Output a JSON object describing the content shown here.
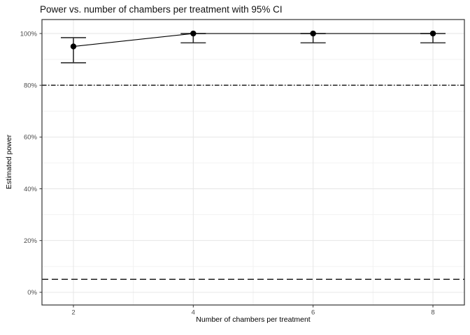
{
  "chart_data": {
    "type": "line",
    "title": "Power vs. number of chambers per treatment with 95% CI",
    "xlabel": "Number of chambers per treatment",
    "ylabel": "Estimated power",
    "x": [
      2,
      4,
      6,
      8
    ],
    "series": [
      {
        "name": "estimated-power",
        "values": [
          0.95,
          1.0,
          1.0,
          1.0
        ],
        "ci_lower": [
          0.887,
          0.964,
          0.964,
          0.964
        ],
        "ci_upper": [
          0.984,
          1.0,
          1.0,
          1.0
        ]
      }
    ],
    "reference_lines": [
      {
        "y": 0.8,
        "style": "dash-dot"
      },
      {
        "y": 0.05,
        "style": "dashed"
      }
    ],
    "x_ticks": [
      2,
      4,
      6,
      8
    ],
    "x_tick_labels": [
      "2",
      "4",
      "6",
      "8"
    ],
    "x_minor": [
      3,
      5,
      7
    ],
    "y_tick_values": [
      0,
      0.2,
      0.4,
      0.6,
      0.8,
      1.0
    ],
    "y_tick_labels": [
      "0%",
      "20%",
      "40%",
      "60%",
      "80%",
      "100%"
    ],
    "y_minor": [
      0.1,
      0.3,
      0.5,
      0.7,
      0.9
    ],
    "xlim": [
      1.475,
      8.525
    ],
    "ylim": [
      -0.049,
      1.054
    ],
    "grid": true,
    "legend": "none",
    "colors": {
      "background": "#ffffff",
      "panel_border": "#333333",
      "grid_major": "#e6e6e6",
      "grid_minor": "#f2f2f2",
      "series": "#000000",
      "errorbar": "#2e2e2e",
      "reference": "#1f1f1f",
      "tick": "#333333",
      "tick_label": "#4d4d4d",
      "text": "#000000"
    }
  }
}
